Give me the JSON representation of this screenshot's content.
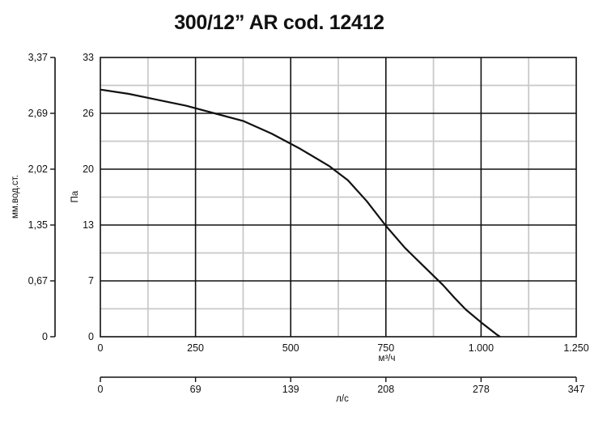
{
  "title": "300/12” AR cod. 12412",
  "chart_data": {
    "type": "line",
    "title": "300/12” AR cod. 12412",
    "xlabel": "м³/ч",
    "ylabel": "Па",
    "xlabel_secondary": "л/с",
    "ylabel_secondary": "мм.вод.ст.",
    "xlim": [
      0,
      1250
    ],
    "ylim": [
      0,
      33
    ],
    "x_ticks": [
      0,
      250,
      500,
      750,
      1000,
      1250
    ],
    "x_tick_labels": [
      "0",
      "250",
      "500",
      "750",
      "1.000",
      "1.250"
    ],
    "y_ticks": [
      0,
      6.6,
      13.2,
      19.8,
      26.4,
      33
    ],
    "y_tick_labels": [
      "0",
      "7",
      "13",
      "20",
      "26",
      "33"
    ],
    "x2_tick_labels": [
      "0",
      "69",
      "139",
      "208",
      "278",
      "347"
    ],
    "y2_tick_labels": [
      "0",
      "0,67",
      "1,35",
      "2,02",
      "2,69",
      "3,37"
    ],
    "grid": true,
    "series": [
      {
        "x": [
          0,
          75,
          150,
          225,
          300,
          375,
          450,
          525,
          600,
          650,
          700,
          750,
          800,
          850,
          900,
          930,
          960,
          1000,
          1040,
          1050
        ],
        "y": [
          29.2,
          28.7,
          28.0,
          27.3,
          26.4,
          25.5,
          24.0,
          22.2,
          20.2,
          18.5,
          16.0,
          13.1,
          10.5,
          8.3,
          6.1,
          4.6,
          3.2,
          1.7,
          0.3,
          0
        ]
      }
    ]
  }
}
